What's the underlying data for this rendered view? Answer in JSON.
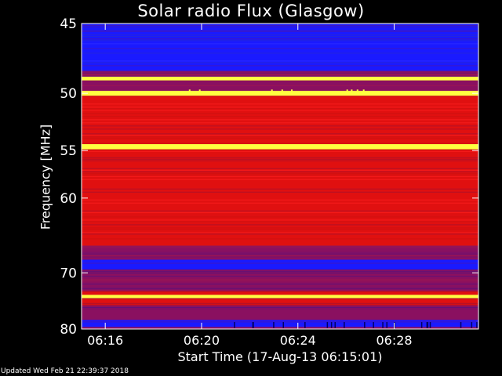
{
  "chart_data": {
    "type": "heatmap",
    "title": "Solar radio Flux (Glasgow)",
    "xlabel": "Start Time (17-Aug-13 06:15:01)",
    "ylabel": "Frequency [MHz]",
    "x_tick_labels": [
      "06:16",
      "06:20",
      "06:24",
      "06:28"
    ],
    "x_tick_minutes": [
      16,
      20,
      24,
      28
    ],
    "xlim_minutes": [
      15.0167,
      31.5
    ],
    "y_tick_labels": [
      "45",
      "50",
      "55",
      "60",
      "70",
      "80"
    ],
    "y_ticks_mhz": [
      45,
      50,
      55,
      60,
      70,
      80
    ],
    "ylim_mhz": [
      45,
      80
    ],
    "y_scale": "reciprocal",
    "colors": {
      "background": "#000000",
      "low": "#1a1aff",
      "mid": "#8a1060",
      "high": "#e01010",
      "peak": "#ffff40",
      "text": "#ffffff"
    },
    "bands": [
      {
        "from": 45.0,
        "to": 46.0,
        "level": "low"
      },
      {
        "from": 46.0,
        "to": 48.3,
        "level": "low"
      },
      {
        "from": 48.3,
        "to": 48.7,
        "level": "mid"
      },
      {
        "from": 48.7,
        "to": 49.0,
        "level": "peak"
      },
      {
        "from": 49.0,
        "to": 49.8,
        "level": "mid"
      },
      {
        "from": 49.8,
        "to": 50.2,
        "level": "peak"
      },
      {
        "from": 50.2,
        "to": 54.4,
        "level": "high"
      },
      {
        "from": 54.4,
        "to": 54.9,
        "level": "peak"
      },
      {
        "from": 54.9,
        "to": 62.0,
        "level": "high"
      },
      {
        "from": 62.0,
        "to": 66.0,
        "level": "high"
      },
      {
        "from": 66.0,
        "to": 68.0,
        "level": "mid"
      },
      {
        "from": 68.0,
        "to": 69.5,
        "level": "low"
      },
      {
        "from": 69.5,
        "to": 73.0,
        "level": "mid"
      },
      {
        "from": 73.0,
        "to": 73.6,
        "level": "high"
      },
      {
        "from": 73.6,
        "to": 74.2,
        "level": "peak"
      },
      {
        "from": 74.2,
        "to": 75.5,
        "level": "high"
      },
      {
        "from": 75.5,
        "to": 78.2,
        "level": "mid"
      },
      {
        "from": 78.2,
        "to": 79.6,
        "level": "low"
      },
      {
        "from": 79.6,
        "to": 80.0,
        "level": "mid"
      }
    ]
  },
  "footer": {
    "updated": "Updated Wed Feb 21 22:39:37 2018"
  }
}
